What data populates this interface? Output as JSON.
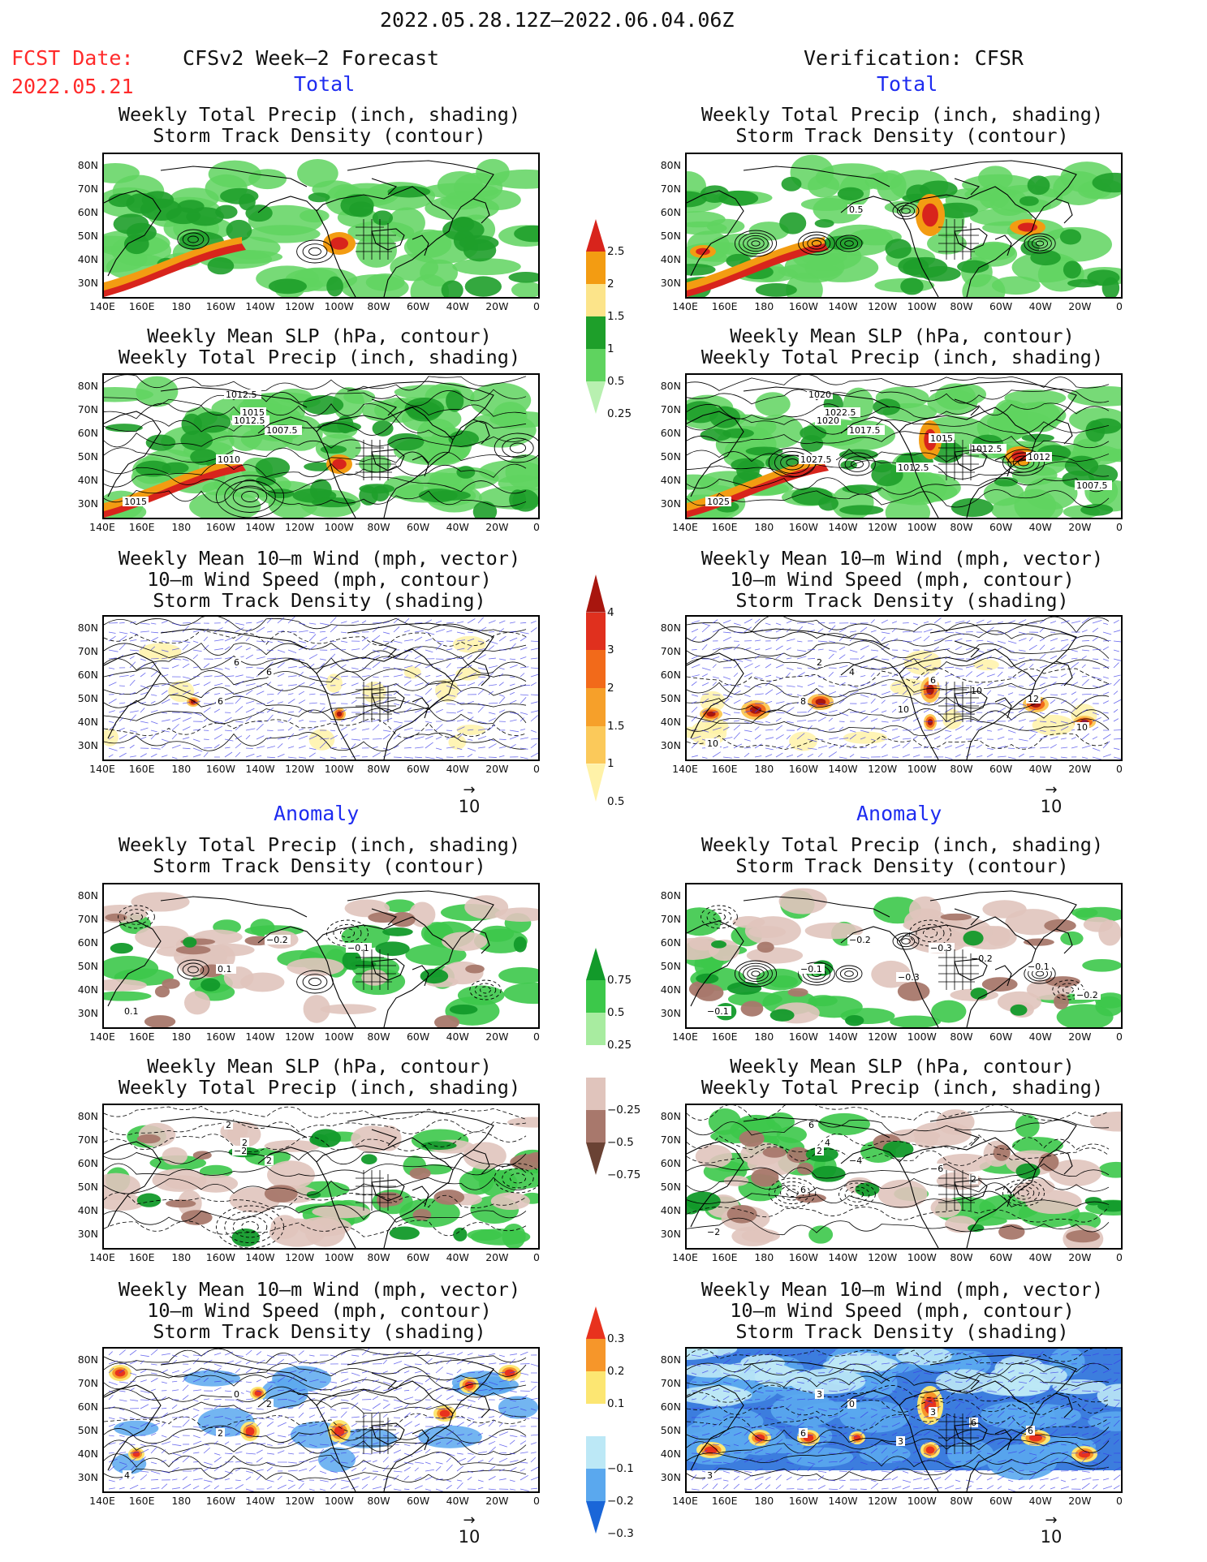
{
  "header": {
    "period": "2022.05.28.12Z–2022.06.04.06Z",
    "fcst_label": "FCST Date:",
    "fcst_date": "2022.05.21",
    "left_title": "CFSv2 Week–2 Forecast",
    "right_title": "Verification: CFSR",
    "total_label": "Total",
    "anomaly_label": "Anomaly"
  },
  "titles": {
    "precip_storm": [
      "Weekly Total Precip (inch, shading)",
      "Storm Track Density (contour)"
    ],
    "slp_precip": [
      "Weekly Mean SLP (hPa, contour)",
      "Weekly Total Precip (inch, shading)"
    ],
    "wind": [
      "Weekly Mean 10–m Wind (mph, vector)",
      "10–m Wind Speed (mph, contour)",
      "Storm Track Density (shading)"
    ]
  },
  "axes": {
    "lat_labels": [
      "80N",
      "70N",
      "60N",
      "50N",
      "40N",
      "30N"
    ],
    "lon_labels": [
      "140E",
      "160E",
      "180",
      "160W",
      "140W",
      "120W",
      "100W",
      "80W",
      "60W",
      "40W",
      "20W",
      "0"
    ]
  },
  "vector_ref": {
    "arrow": "→",
    "value": "10"
  },
  "colorbars": {
    "total_precip": {
      "labels": [
        "2.5",
        "2",
        "1.5",
        "1",
        "0.5",
        "0.25"
      ],
      "colors": [
        "#d8241c",
        "#f39c12",
        "#fce48a",
        "#1e9f2a",
        "#5fd35f",
        "#b8f0b0"
      ]
    },
    "total_storm": {
      "labels": [
        "4",
        "3",
        "2",
        "1.5",
        "1",
        "0.5"
      ],
      "colors": [
        "#a8160e",
        "#e0301e",
        "#f26a1a",
        "#f6a02a",
        "#fbc95a",
        "#fff2a8"
      ]
    },
    "anom_precip": {
      "labels": [
        "0.75",
        "0.5",
        "0.25",
        "−0.25",
        "−0.5",
        "−0.75"
      ],
      "colors": [
        "#129a2a",
        "#3cc84a",
        "#a8eca0",
        "#ffffff",
        "#e0c4bc",
        "#a8786c",
        "#6a4234"
      ]
    },
    "anom_storm": {
      "labels": [
        "0.3",
        "0.2",
        "0.1",
        "−0.1",
        "−0.2",
        "−0.3"
      ],
      "colors": [
        "#e8321e",
        "#f6962a",
        "#fce672",
        "#ffffff",
        "#bce8f6",
        "#5aa8ee",
        "#1a66d8"
      ]
    }
  },
  "slp_labels": {
    "fcst_total": [
      "1012.5",
      "1015",
      "1012.5",
      "1007.5",
      "1010",
      "1015"
    ],
    "verif_total": [
      "1020",
      "1022.5",
      "1020",
      "1017.5",
      "1027.5",
      "1025",
      "1015",
      "1012.5",
      "1012.5",
      "1012",
      "1007.5"
    ],
    "fcst_anom": [
      "2",
      "2",
      "−2",
      "2"
    ],
    "verif_anom": [
      "6",
      "4",
      "2",
      "−4",
      "6",
      "−2",
      "−6",
      "2"
    ]
  },
  "storm_labels": {
    "verif_total": [
      "0.5"
    ],
    "fcst_anom": [
      "−0.2",
      "0.1",
      "0.1",
      "−0.1"
    ],
    "verif_anom": [
      "−0.2",
      "−0.1",
      "−0.1",
      "−0.3",
      "−0.2",
      "−0.3",
      "−0.1",
      "−0.2"
    ]
  },
  "wind_labels": {
    "fcst_total": [
      "6",
      "6",
      "6"
    ],
    "verif_total": [
      "2",
      "4",
      "8",
      "10",
      "6",
      "10",
      "10",
      "12",
      "10"
    ],
    "fcst_anom": [
      "0",
      "2",
      "2",
      "4"
    ],
    "verif_anom": [
      "3",
      "0",
      "6",
      "3",
      "3",
      "6",
      "3",
      "6"
    ]
  }
}
